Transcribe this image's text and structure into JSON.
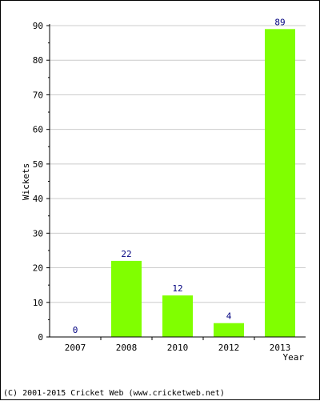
{
  "chart_data": {
    "type": "bar",
    "categories": [
      "2007",
      "2008",
      "2010",
      "2012",
      "2013"
    ],
    "values": [
      0,
      22,
      12,
      4,
      89
    ],
    "xlabel": "Year",
    "ylabel": "Wickets",
    "ylim": [
      0,
      90
    ],
    "yticks": [
      0,
      10,
      20,
      30,
      40,
      50,
      60,
      70,
      80,
      90
    ],
    "grid": true,
    "bar_color": "#80ff00",
    "label_color": "#000080"
  },
  "footer": "(C) 2001-2015 Cricket Web (www.cricketweb.net)"
}
